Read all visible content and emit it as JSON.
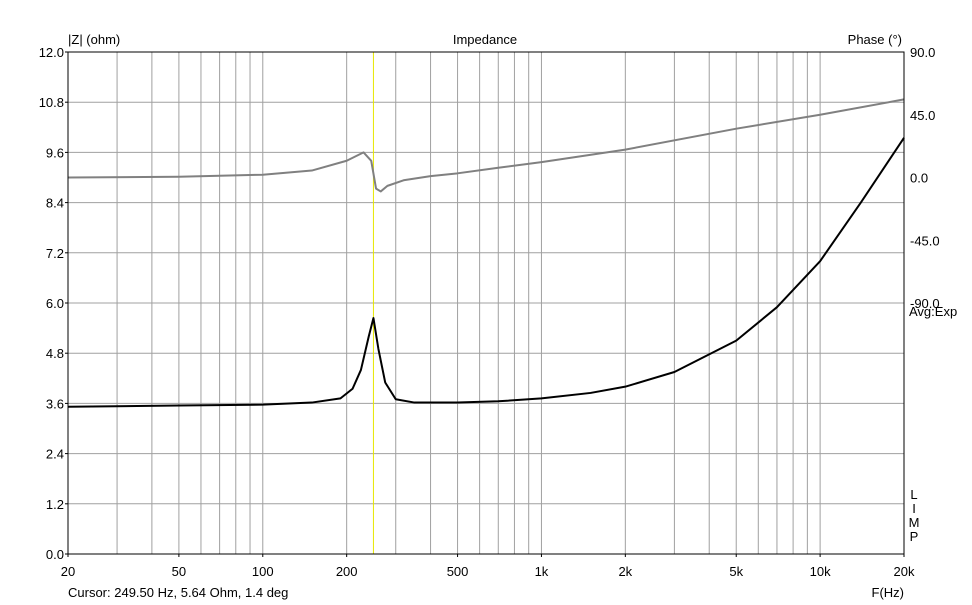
{
  "chart_data": {
    "type": "line",
    "title": "Impedance",
    "ylabel": "|Z| (ohm)",
    "y2label": "Phase (°)",
    "xlabel": "F(Hz)",
    "x_scale": "log",
    "xlim": [
      20,
      20000
    ],
    "ylim": [
      0,
      12
    ],
    "y2lim": [
      -270,
      90
    ],
    "x_ticks": [
      {
        "value": 20,
        "label": "20"
      },
      {
        "value": 50,
        "label": "50"
      },
      {
        "value": 100,
        "label": "100"
      },
      {
        "value": 200,
        "label": "200"
      },
      {
        "value": 500,
        "label": "500"
      },
      {
        "value": 1000,
        "label": "1k"
      },
      {
        "value": 2000,
        "label": "2k"
      },
      {
        "value": 5000,
        "label": "5k"
      },
      {
        "value": 10000,
        "label": "10k"
      },
      {
        "value": 20000,
        "label": "20k"
      }
    ],
    "y_ticks": [
      "0.0",
      "1.2",
      "2.4",
      "3.6",
      "4.8",
      "6.0",
      "7.2",
      "8.4",
      "9.6",
      "10.8",
      "12.0"
    ],
    "y2_ticks": [
      {
        "value": 90,
        "label": "90.0"
      },
      {
        "value": 45,
        "label": "45.0"
      },
      {
        "value": 0,
        "label": "0.0"
      },
      {
        "value": -45,
        "label": "-45.0"
      },
      {
        "value": -90,
        "label": "-90.0"
      }
    ],
    "grid": true,
    "side_label": "Avg:Exp",
    "vertical_label": "LIMP",
    "cursor": {
      "frequency": 249.5,
      "text": "Cursor: 249.50 Hz, 5.64 Ohm, 1.4 deg"
    },
    "colors": {
      "impedance": "#000000",
      "phase": "#808080",
      "grid": "#a0a0a0",
      "cursor": "#e6e600"
    },
    "series": [
      {
        "name": "|Z|",
        "axis": "left",
        "x": [
          20,
          50,
          100,
          150,
          190,
          210,
          225,
          240,
          249.5,
          260,
          275,
          300,
          350,
          500,
          700,
          1000,
          1500,
          2000,
          3000,
          5000,
          7000,
          10000,
          14000,
          20000
        ],
        "y": [
          3.52,
          3.55,
          3.57,
          3.62,
          3.72,
          3.95,
          4.4,
          5.2,
          5.64,
          4.9,
          4.1,
          3.7,
          3.62,
          3.62,
          3.65,
          3.72,
          3.85,
          4.0,
          4.35,
          5.1,
          5.9,
          7.0,
          8.4,
          9.95
        ]
      },
      {
        "name": "Phase",
        "axis": "right",
        "x": [
          20,
          50,
          100,
          150,
          200,
          230,
          245,
          255,
          265,
          280,
          320,
          400,
          500,
          700,
          1000,
          2000,
          5000,
          10000,
          20000
        ],
        "y": [
          0,
          0.5,
          2,
          5,
          12,
          18,
          12,
          -8,
          -10,
          -6,
          -2,
          1,
          3,
          7,
          11,
          20,
          35,
          45,
          56
        ]
      }
    ]
  }
}
